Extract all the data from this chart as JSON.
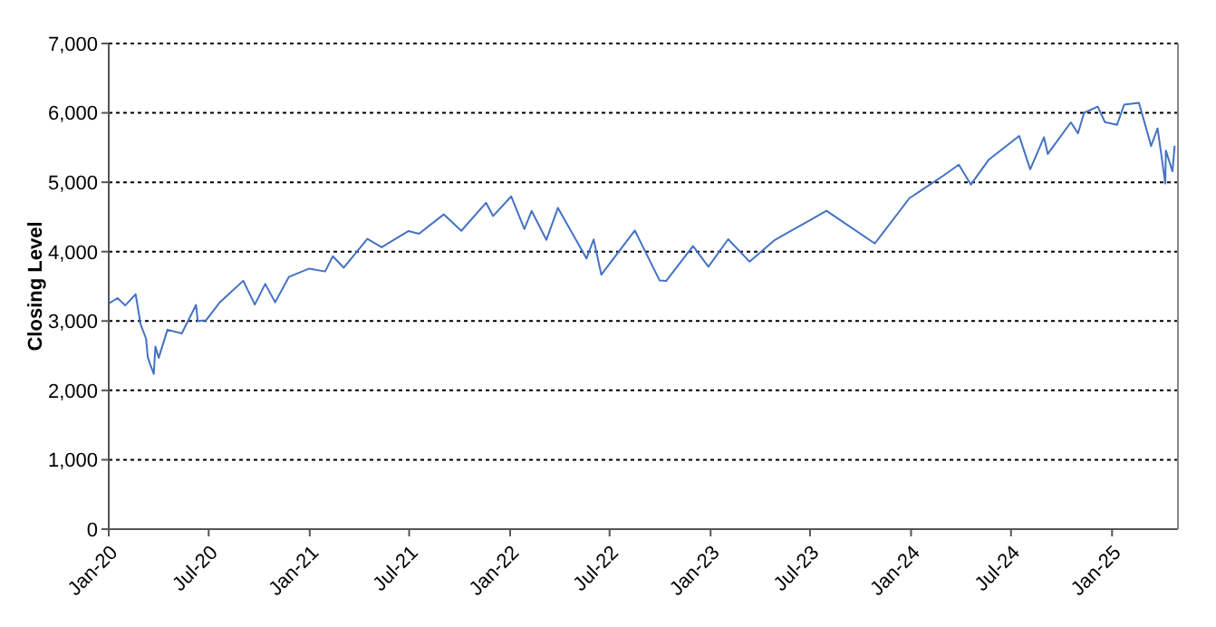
{
  "chart_data": {
    "type": "line",
    "ylabel": "Closing Level",
    "x": [
      "2020-01-02",
      "2020-01-17",
      "2020-01-31",
      "2020-02-19",
      "2020-02-28",
      "2020-03-09",
      "2020-03-12",
      "2020-03-16",
      "2020-03-23",
      "2020-03-26",
      "2020-04-01",
      "2020-04-17",
      "2020-05-13",
      "2020-06-08",
      "2020-06-11",
      "2020-06-26",
      "2020-07-22",
      "2020-09-02",
      "2020-09-23",
      "2020-10-12",
      "2020-10-30",
      "2020-11-24",
      "2020-12-31",
      "2021-01-29",
      "2021-02-12",
      "2021-03-04",
      "2021-04-16",
      "2021-05-12",
      "2021-06-30",
      "2021-07-19",
      "2021-09-02",
      "2021-10-04",
      "2021-11-18",
      "2021-12-01",
      "2022-01-03",
      "2022-01-27",
      "2022-02-09",
      "2022-03-08",
      "2022-03-29",
      "2022-05-20",
      "2022-06-02",
      "2022-06-16",
      "2022-07-01",
      "2022-08-16",
      "2022-09-30",
      "2022-10-12",
      "2022-11-30",
      "2022-12-28",
      "2023-02-02",
      "2023-03-13",
      "2023-04-28",
      "2023-06-30",
      "2023-07-31",
      "2023-10-27",
      "2023-12-29",
      "2024-02-29",
      "2024-03-28",
      "2024-04-19",
      "2024-05-21",
      "2024-07-16",
      "2024-08-05",
      "2024-08-30",
      "2024-09-06",
      "2024-10-18",
      "2024-10-31",
      "2024-11-11",
      "2024-12-06",
      "2024-12-19",
      "2025-01-10",
      "2025-01-23",
      "2025-02-19",
      "2025-03-10",
      "2025-03-13",
      "2025-03-25",
      "2025-04-08",
      "2025-04-09",
      "2025-04-21",
      "2025-04-25"
    ],
    "series": [
      {
        "color": "#4472c4",
        "values": [
          3258,
          3330,
          3225,
          3386,
          2954,
          2746,
          2480,
          2386,
          2237,
          2630,
          2470,
          2875,
          2820,
          3232,
          3002,
          3009,
          3276,
          3580,
          3237,
          3534,
          3270,
          3635,
          3756,
          3714,
          3934,
          3768,
          4185,
          4063,
          4297,
          4258,
          4537,
          4300,
          4704,
          4513,
          4796,
          4326,
          4587,
          4170,
          4631,
          3901,
          4176,
          3667,
          3825,
          4305,
          3586,
          3577,
          4080,
          3783,
          4179,
          3855,
          4169,
          4450,
          4589,
          4117,
          4770,
          5096,
          5254,
          4967,
          5321,
          5667,
          5186,
          5648,
          5408,
          5864,
          5705,
          6001,
          6090,
          5867,
          5827,
          6119,
          6144,
          5614,
          5522,
          5776,
          4982,
          5457,
          5158,
          5525
        ]
      }
    ],
    "xlim": [
      "2020-01-01",
      "2025-05-01"
    ],
    "xticks": [
      {
        "value": "2020-01-01",
        "label": "Jan-20"
      },
      {
        "value": "2020-07-01",
        "label": "Jul-20"
      },
      {
        "value": "2021-01-01",
        "label": "Jan-21"
      },
      {
        "value": "2021-07-01",
        "label": "Jul-21"
      },
      {
        "value": "2022-01-01",
        "label": "Jan-22"
      },
      {
        "value": "2022-07-01",
        "label": "Jul-22"
      },
      {
        "value": "2023-01-01",
        "label": "Jan-23"
      },
      {
        "value": "2023-07-01",
        "label": "Jul-23"
      },
      {
        "value": "2024-01-01",
        "label": "Jan-24"
      },
      {
        "value": "2024-07-01",
        "label": "Jul-24"
      },
      {
        "value": "2025-01-01",
        "label": "Jan-25"
      }
    ],
    "ylim": [
      0,
      7000
    ],
    "yticks": [
      0,
      {
        "value": 1000,
        "label": "1,000"
      },
      {
        "value": 2000,
        "label": "2,000"
      },
      {
        "value": 3000,
        "label": "3,000"
      },
      {
        "value": 4000,
        "label": "4,000"
      },
      {
        "value": 5000,
        "label": "5,000"
      },
      {
        "value": 6000,
        "label": "6,000"
      },
      {
        "value": 7000,
        "label": "7,000"
      }
    ],
    "grid": "y",
    "marker": "none",
    "line_style": "solid",
    "legend": false
  }
}
